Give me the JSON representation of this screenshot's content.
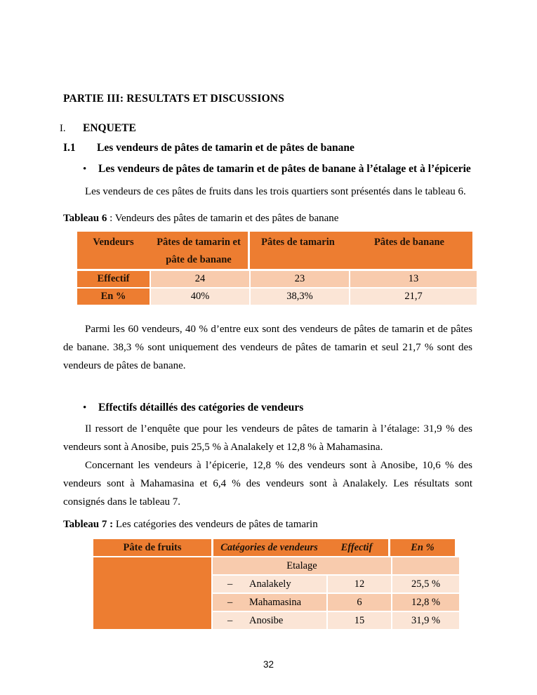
{
  "page": {
    "title": "PARTIE III: RESULTATS ET DISCUSSIONS",
    "number": "32"
  },
  "headings": {
    "section_number": "I.",
    "section_title": "ENQUETE",
    "subsection_number": "I.1",
    "subsection_title": "Les vendeurs de pâtes de tamarin et de pâtes de banane"
  },
  "bullets": {
    "glyph": "•",
    "bullet1": "Les vendeurs de pâtes de tamarin et de pâtes de banane à l’étalage et à l’épicerie",
    "bullet2": "Effectifs détaillés des  catégories de vendeurs"
  },
  "paragraphs": {
    "p1": "Les vendeurs de ces pâtes de fruits dans les trois quartiers sont présentés dans le tableau 6.",
    "p2": "Parmi les 60 vendeurs, 40 % d’entre eux sont des vendeurs de pâtes de tamarin et de pâtes de banane. 38,3 % sont uniquement des vendeurs de pâtes de tamarin et seul 21,7 % sont des vendeurs de pâtes de banane.",
    "p3": "Il ressort de l’enquête que pour les vendeurs de pâtes de tamarin à l’étalage: 31,9 % des vendeurs sont à Anosibe, puis 25,5 % à Analakely et 12,8 % à Mahamasina.",
    "p4": "Concernant les vendeurs à l’épicerie, 12,8 % des vendeurs sont à Anosibe, 10,6 % des vendeurs sont à Mahamasina et 6,4 % des vendeurs sont à Analakely. Les résultats sont consignés dans le tableau 7."
  },
  "table6": {
    "caption_bold": "Tableau  6",
    "caption_rest": " : Vendeurs des pâtes de tamarin et des pâtes de banane",
    "headers": [
      "Vendeurs",
      "Pâtes de tamarin et pâte de banane",
      "Pâtes de tamarin",
      "Pâtes de banane"
    ],
    "rows": [
      {
        "label": "Effectif",
        "values": [
          "24",
          "23",
          "13"
        ]
      },
      {
        "label": "En %",
        "values": [
          "40%",
          "38,3%",
          "21,7"
        ]
      }
    ]
  },
  "table7": {
    "caption_bold": "Tableau  7 :",
    "caption_rest": " Les catégories des vendeurs de pâtes de tamarin",
    "headers": [
      "Pâte de fruits",
      "Catégories de vendeurs",
      "Effectif",
      "En %"
    ],
    "group_label": "Etalage",
    "rows": [
      {
        "dash": "–",
        "category": "Analakely",
        "effectif": "12",
        "pct": "25,5 %"
      },
      {
        "dash": "–",
        "category": "Mahamasina",
        "effectif": "6",
        "pct": "12,8 %"
      },
      {
        "dash": "–",
        "category": "Anosibe",
        "effectif": "15",
        "pct": "31,9 %"
      }
    ]
  },
  "colors": {
    "table_accent_orange": "#ED7D31",
    "row_band_medium": "#F8CBAD",
    "row_band_light": "#FBE5D6"
  }
}
